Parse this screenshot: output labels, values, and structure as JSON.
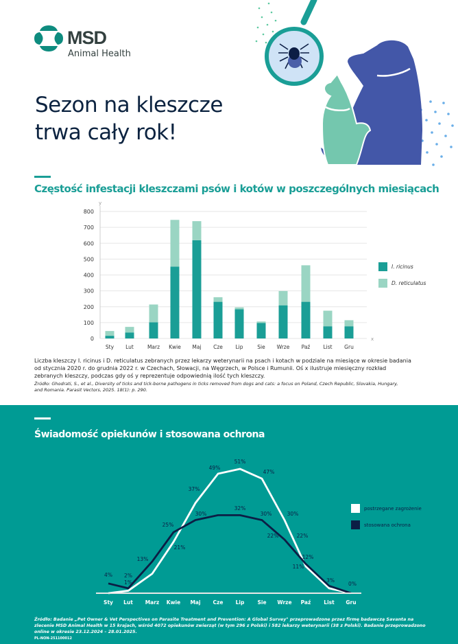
{
  "brand": {
    "name": "MSD",
    "sub": "Animal Health",
    "accent": "#1a9e96",
    "light": "#9ad5c3",
    "dark": "#0c1e45",
    "teal_bg": "#009b94"
  },
  "header": {
    "title_line1": "Sezon na kleszcze",
    "title_line2": "trwa cały rok!",
    "illustration_icons": [
      "magnifier-icon",
      "tick-icon",
      "dog-icon",
      "cat-icon"
    ]
  },
  "section1": {
    "title": "Częstość infestacji kleszczami psów i kotów w poszczególnych miesiącach",
    "caption": "Liczba kleszczy I. ricinus i D. reticulatus zebranych przez lekarzy weterynarii na psach i kotach w podziale na miesiące w okresie badania od stycznia 2020 r. do grudnia 2022 r. w Czechach, Słowacji, na Węgrzech, w Polsce i Rumunii. Oś x ilustruje miesięczny rozkład zebranych kleszczy, podczas gdy oś y reprezentuje odpowiednią ilość tych kleszczy.",
    "source": "Źródło: Ghodrati, S., et al., Diversity of ticks and tick-borne pathogens in ticks removed from dogs and cats: a focus on Poland, Czech Republic, Slovakia, Hungary, and Romania. Parasit Vectors, 2025. 18(1): p. 290."
  },
  "section2": {
    "title": "Świadomość opiekunów i stosowana ochrona",
    "source": "Źródło: Badanie „Pet Owner & Vet Perspectives on Parasite Treatment and Prevention: A Global Survey\" przeprowadzone przez firmę badawczą Savanta na zlecenie MSD Animal Health w 15 krajach, wśród 4072 opiekunów zwierząt (w tym 296 z Polski) i 582 lekarzy weterynarii (38 z Polski). Badanie przeprowadzono online w okresie 23.12.2024 – 28.01.2025.",
    "code": "PL-NON-251100012"
  },
  "chart_data": [
    {
      "type": "bar",
      "stacked": true,
      "xlabel": "x",
      "ylabel": "y",
      "ylim": [
        0,
        800
      ],
      "yticks": [
        "0",
        "100",
        "200",
        "300",
        "400",
        "500",
        "600",
        "700",
        "800"
      ],
      "grid": true,
      "legend": "right",
      "categories": [
        "Sty",
        "Lut",
        "Marz",
        "Kwie",
        "Maj",
        "Cze",
        "Lip",
        "Sie",
        "Wrze",
        "Paź",
        "List",
        "Gru"
      ],
      "series": [
        {
          "name": "I. ricinus",
          "color": "#1a9e96",
          "values": [
            17,
            38,
            102,
            453,
            619,
            231,
            184,
            98,
            209,
            231,
            77,
            77
          ]
        },
        {
          "name": "D. reticulatus",
          "color": "#9ad5c3",
          "values": [
            30,
            35,
            112,
            294,
            120,
            29,
            12,
            9,
            90,
            230,
            98,
            38
          ]
        }
      ]
    },
    {
      "type": "line",
      "ylim": [
        0,
        55
      ],
      "grid": false,
      "legend": "right",
      "categories": [
        "Sty",
        "Lut",
        "Marz",
        "Kwie",
        "Maj",
        "Cze",
        "Lip",
        "Sie",
        "Wrze",
        "Paź",
        "List",
        "Gru"
      ],
      "series": [
        {
          "name": "postrzegane zagrożenie",
          "color": "#ffffff",
          "values": [
            0,
            1,
            8,
            21,
            37,
            49,
            51,
            47,
            30,
            11,
            2,
            0
          ]
        },
        {
          "name": "stosowana ochrona",
          "color": "#0c1e45",
          "values": [
            4,
            2,
            13,
            25,
            30,
            32,
            32,
            30,
            22,
            12,
            3,
            0
          ]
        }
      ],
      "labels": [
        "4%",
        "2%",
        "1%",
        "13%",
        "25%",
        "21%",
        "37%",
        "30%",
        "49%",
        "51%",
        "32%",
        "47%",
        "30%",
        "30%",
        "22%",
        "22%",
        "12%",
        "11%",
        "3%",
        "0%"
      ]
    }
  ]
}
